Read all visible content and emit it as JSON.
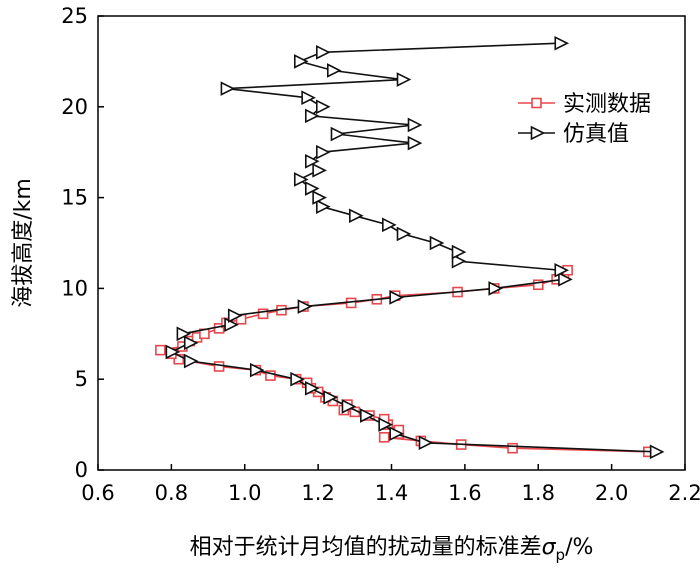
{
  "chart_data": {
    "type": "line",
    "xlabel_main": "相对于统计月均值的扰动量的标准差",
    "xlabel_symbol": "σ",
    "xlabel_subscript": "p",
    "xlabel_unit": "/%",
    "ylabel": "海拔高度/km",
    "xlim": [
      0.6,
      2.2
    ],
    "ylim": [
      0,
      25
    ],
    "x_ticks": [
      "0.6",
      "0.8",
      "1.0",
      "1.2",
      "1.4",
      "1.6",
      "1.8",
      "2.0",
      "2.2"
    ],
    "y_ticks": [
      "0",
      "5",
      "10",
      "15",
      "20",
      "25"
    ],
    "grid": false,
    "legend_position": "upper-right",
    "series": [
      {
        "name": "实测数据",
        "color": "#e8474d",
        "marker": "square",
        "points": [
          [
            2.1,
            1.0
          ],
          [
            1.73,
            1.2
          ],
          [
            1.59,
            1.4
          ],
          [
            1.48,
            1.6
          ],
          [
            1.38,
            1.8
          ],
          [
            1.42,
            2.0
          ],
          [
            1.42,
            2.2
          ],
          [
            1.39,
            2.5
          ],
          [
            1.38,
            2.8
          ],
          [
            1.34,
            3.0
          ],
          [
            1.3,
            3.2
          ],
          [
            1.27,
            3.3
          ],
          [
            1.28,
            3.6
          ],
          [
            1.24,
            3.8
          ],
          [
            1.22,
            4.0
          ],
          [
            1.2,
            4.3
          ],
          [
            1.18,
            4.5
          ],
          [
            1.17,
            4.8
          ],
          [
            1.14,
            5.0
          ],
          [
            1.07,
            5.2
          ],
          [
            1.03,
            5.5
          ],
          [
            0.93,
            5.7
          ],
          [
            0.82,
            6.1
          ],
          [
            0.8,
            6.4
          ],
          [
            0.77,
            6.6
          ],
          [
            0.83,
            6.8
          ],
          [
            0.85,
            7.1
          ],
          [
            0.87,
            7.3
          ],
          [
            0.89,
            7.5
          ],
          [
            0.93,
            7.8
          ],
          [
            0.95,
            8.1
          ],
          [
            0.99,
            8.3
          ],
          [
            1.05,
            8.6
          ],
          [
            1.1,
            8.8
          ],
          [
            1.16,
            9.0
          ],
          [
            1.29,
            9.2
          ],
          [
            1.36,
            9.4
          ],
          [
            1.41,
            9.6
          ],
          [
            1.58,
            9.8
          ],
          [
            1.68,
            10.0
          ],
          [
            1.8,
            10.2
          ],
          [
            1.85,
            10.5
          ],
          [
            1.87,
            10.7
          ],
          [
            1.88,
            11.0
          ]
        ]
      },
      {
        "name": "仿真值",
        "color": "#111111",
        "marker": "triangle-right",
        "points": [
          [
            2.12,
            1.0
          ],
          [
            1.49,
            1.5
          ],
          [
            1.41,
            2.0
          ],
          [
            1.38,
            2.5
          ],
          [
            1.33,
            3.0
          ],
          [
            1.28,
            3.5
          ],
          [
            1.23,
            4.0
          ],
          [
            1.18,
            4.5
          ],
          [
            1.14,
            5.0
          ],
          [
            1.03,
            5.5
          ],
          [
            0.85,
            6.0
          ],
          [
            0.8,
            6.5
          ],
          [
            0.85,
            7.0
          ],
          [
            0.83,
            7.5
          ],
          [
            0.96,
            8.0
          ],
          [
            0.97,
            8.5
          ],
          [
            1.16,
            9.0
          ],
          [
            1.41,
            9.5
          ],
          [
            1.68,
            10.0
          ],
          [
            1.87,
            10.5
          ],
          [
            1.86,
            11.0
          ],
          [
            1.58,
            11.5
          ],
          [
            1.58,
            12.0
          ],
          [
            1.52,
            12.5
          ],
          [
            1.43,
            13.0
          ],
          [
            1.39,
            13.5
          ],
          [
            1.3,
            14.0
          ],
          [
            1.21,
            14.5
          ],
          [
            1.2,
            15.0
          ],
          [
            1.18,
            15.5
          ],
          [
            1.15,
            16.0
          ],
          [
            1.2,
            16.5
          ],
          [
            1.18,
            17.0
          ],
          [
            1.21,
            17.5
          ],
          [
            1.46,
            18.0
          ],
          [
            1.25,
            18.5
          ],
          [
            1.46,
            19.0
          ],
          [
            1.18,
            19.5
          ],
          [
            1.21,
            20.0
          ],
          [
            1.17,
            20.5
          ],
          [
            0.95,
            21.0
          ],
          [
            1.43,
            21.5
          ],
          [
            1.24,
            22.0
          ],
          [
            1.15,
            22.5
          ],
          [
            1.21,
            23.0
          ],
          [
            1.86,
            23.5
          ]
        ]
      }
    ]
  }
}
